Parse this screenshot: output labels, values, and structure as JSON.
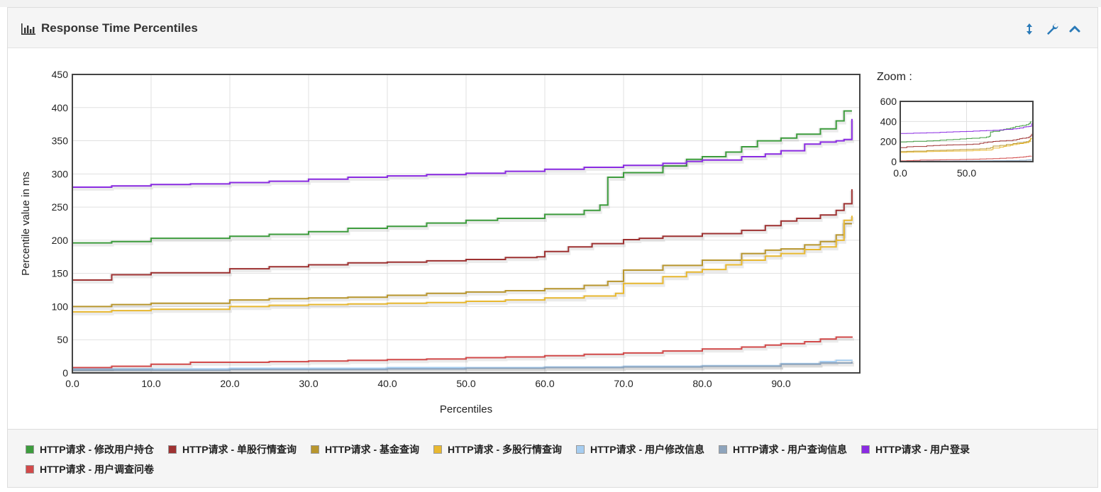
{
  "panel": {
    "title": "Response Time Percentiles",
    "tools": [
      {
        "name": "expand-height",
        "icon": "arrows-vertical-icon"
      },
      {
        "name": "settings",
        "icon": "wrench-icon"
      },
      {
        "name": "collapse",
        "icon": "chevron-up-icon"
      }
    ],
    "zoom_label": "Zoom :"
  },
  "chart_data": {
    "type": "line",
    "title": "",
    "xlabel": "Percentiles",
    "ylabel": "Percentile value in ms",
    "xlim": [
      0,
      100
    ],
    "ylim": [
      0,
      450
    ],
    "x_ticks": [
      0,
      10,
      20,
      30,
      40,
      50,
      60,
      70,
      80,
      90
    ],
    "x_tick_labels": [
      "0.0",
      "10.0",
      "20.0",
      "30.0",
      "40.0",
      "50.0",
      "60.0",
      "70.0",
      "80.0",
      "90.0"
    ],
    "y_ticks": [
      0,
      50,
      100,
      150,
      200,
      250,
      300,
      350,
      400,
      450
    ],
    "grid": true,
    "legend_position": "bottom",
    "series": [
      {
        "name": "HTTP请求 - 修改用户持仓",
        "color": "#3d9c3d",
        "points": [
          [
            0,
            196
          ],
          [
            5,
            198
          ],
          [
            10,
            203
          ],
          [
            20,
            206
          ],
          [
            25,
            209
          ],
          [
            30,
            213
          ],
          [
            35,
            218
          ],
          [
            40,
            221
          ],
          [
            45,
            226
          ],
          [
            50,
            230
          ],
          [
            54,
            233
          ],
          [
            60,
            239
          ],
          [
            65,
            245
          ],
          [
            67,
            253
          ],
          [
            68,
            295
          ],
          [
            70,
            302
          ],
          [
            75,
            312
          ],
          [
            78,
            322
          ],
          [
            80,
            326
          ],
          [
            83,
            333
          ],
          [
            85,
            341
          ],
          [
            87,
            350
          ],
          [
            90,
            354
          ],
          [
            92,
            360
          ],
          [
            95,
            368
          ],
          [
            97,
            380
          ],
          [
            98,
            395
          ],
          [
            99,
            395
          ]
        ]
      },
      {
        "name": "HTTP请求 - 单股行情查询",
        "color": "#9e3232",
        "points": [
          [
            0,
            140
          ],
          [
            5,
            148
          ],
          [
            10,
            151
          ],
          [
            20,
            157
          ],
          [
            25,
            160
          ],
          [
            30,
            163
          ],
          [
            35,
            166
          ],
          [
            40,
            167
          ],
          [
            45,
            169
          ],
          [
            50,
            171
          ],
          [
            55,
            174
          ],
          [
            59,
            175
          ],
          [
            60,
            183
          ],
          [
            63,
            190
          ],
          [
            66,
            195
          ],
          [
            70,
            201
          ],
          [
            72,
            203
          ],
          [
            75,
            206
          ],
          [
            80,
            210
          ],
          [
            85,
            215
          ],
          [
            88,
            222
          ],
          [
            90,
            229
          ],
          [
            92,
            233
          ],
          [
            95,
            238
          ],
          [
            97,
            245
          ],
          [
            98,
            255
          ],
          [
            99,
            277
          ]
        ]
      },
      {
        "name": "HTTP请求 - 基金查询",
        "color": "#b8962e",
        "points": [
          [
            0,
            100
          ],
          [
            5,
            103
          ],
          [
            10,
            105
          ],
          [
            20,
            110
          ],
          [
            25,
            112
          ],
          [
            30,
            113
          ],
          [
            35,
            114
          ],
          [
            40,
            117
          ],
          [
            45,
            120
          ],
          [
            50,
            122
          ],
          [
            55,
            124
          ],
          [
            60,
            127
          ],
          [
            65,
            132
          ],
          [
            68,
            138
          ],
          [
            70,
            155
          ],
          [
            75,
            162
          ],
          [
            80,
            170
          ],
          [
            85,
            180
          ],
          [
            88,
            185
          ],
          [
            90,
            187
          ],
          [
            93,
            193
          ],
          [
            95,
            198
          ],
          [
            97,
            208
          ],
          [
            98,
            225
          ],
          [
            99,
            225
          ]
        ]
      },
      {
        "name": "HTTP请求 - 多股行情查询",
        "color": "#e8b830",
        "points": [
          [
            0,
            92
          ],
          [
            5,
            94
          ],
          [
            10,
            96
          ],
          [
            20,
            100
          ],
          [
            25,
            102
          ],
          [
            30,
            103
          ],
          [
            35,
            104
          ],
          [
            40,
            105
          ],
          [
            45,
            106
          ],
          [
            50,
            108
          ],
          [
            55,
            110
          ],
          [
            60,
            113
          ],
          [
            65,
            116
          ],
          [
            69,
            120
          ],
          [
            70,
            135
          ],
          [
            75,
            145
          ],
          [
            78,
            152
          ],
          [
            80,
            156
          ],
          [
            83,
            163
          ],
          [
            85,
            170
          ],
          [
            88,
            176
          ],
          [
            90,
            180
          ],
          [
            93,
            186
          ],
          [
            95,
            190
          ],
          [
            97,
            200
          ],
          [
            98,
            230
          ],
          [
            99,
            237
          ]
        ]
      },
      {
        "name": "HTTP请求 - 用户修改信息",
        "color": "#a6cdf0",
        "points": [
          [
            0,
            6
          ],
          [
            10,
            6
          ],
          [
            20,
            7
          ],
          [
            30,
            7
          ],
          [
            40,
            8
          ],
          [
            50,
            8
          ],
          [
            60,
            9
          ],
          [
            70,
            10
          ],
          [
            80,
            11
          ],
          [
            90,
            14
          ],
          [
            95,
            17
          ],
          [
            97,
            19
          ],
          [
            99,
            20
          ]
        ]
      },
      {
        "name": "HTTP请求 - 用户查询信息",
        "color": "#8ea4bc",
        "points": [
          [
            0,
            4
          ],
          [
            10,
            4
          ],
          [
            20,
            5
          ],
          [
            30,
            5
          ],
          [
            40,
            6
          ],
          [
            50,
            7
          ],
          [
            60,
            8
          ],
          [
            70,
            9
          ],
          [
            80,
            10
          ],
          [
            90,
            13
          ],
          [
            95,
            15
          ],
          [
            99,
            17
          ]
        ]
      },
      {
        "name": "HTTP请求 - 用户登录",
        "color": "#8a2be2",
        "points": [
          [
            0,
            280
          ],
          [
            5,
            282
          ],
          [
            10,
            284
          ],
          [
            15,
            285
          ],
          [
            20,
            287
          ],
          [
            25,
            289
          ],
          [
            30,
            292
          ],
          [
            35,
            295
          ],
          [
            40,
            297
          ],
          [
            45,
            299
          ],
          [
            50,
            301
          ],
          [
            55,
            304
          ],
          [
            60,
            307
          ],
          [
            65,
            310
          ],
          [
            70,
            313
          ],
          [
            75,
            316
          ],
          [
            78,
            319
          ],
          [
            80,
            321
          ],
          [
            85,
            326
          ],
          [
            88,
            330
          ],
          [
            90,
            335
          ],
          [
            93,
            345
          ],
          [
            95,
            348
          ],
          [
            97,
            350
          ],
          [
            98,
            352
          ],
          [
            99,
            383
          ]
        ]
      },
      {
        "name": "HTTP请求 - 用户调查问卷",
        "color": "#d24a4a",
        "points": [
          [
            0,
            8
          ],
          [
            5,
            10
          ],
          [
            10,
            13
          ],
          [
            15,
            16
          ],
          [
            20,
            16
          ],
          [
            25,
            17
          ],
          [
            30,
            18
          ],
          [
            35,
            19
          ],
          [
            40,
            20
          ],
          [
            45,
            21
          ],
          [
            50,
            23
          ],
          [
            55,
            24
          ],
          [
            60,
            26
          ],
          [
            65,
            28
          ],
          [
            70,
            30
          ],
          [
            75,
            33
          ],
          [
            80,
            36
          ],
          [
            85,
            39
          ],
          [
            88,
            42
          ],
          [
            90,
            44
          ],
          [
            93,
            47
          ],
          [
            95,
            51
          ],
          [
            97,
            54
          ],
          [
            99,
            55
          ]
        ]
      }
    ],
    "zoom": {
      "xlim": [
        0,
        100
      ],
      "ylim": [
        0,
        600
      ],
      "x_ticks": [
        0,
        50
      ],
      "x_tick_labels": [
        "0.0",
        "50.0"
      ],
      "y_ticks": [
        0,
        200,
        400,
        600
      ]
    }
  }
}
